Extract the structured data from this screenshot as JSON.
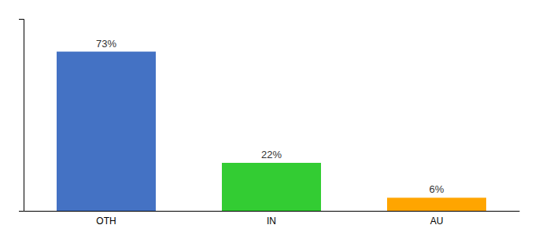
{
  "chart_data": {
    "type": "bar",
    "categories": [
      "OTH",
      "IN",
      "AU"
    ],
    "values": [
      73,
      22,
      6
    ],
    "value_labels": [
      "73%",
      "22%",
      "6%"
    ],
    "colors": [
      "#4472C4",
      "#33CC33",
      "#FFA500"
    ],
    "ylim": [
      0,
      88
    ],
    "yticks": [],
    "data_labels": true,
    "tick_labels": "x"
  }
}
